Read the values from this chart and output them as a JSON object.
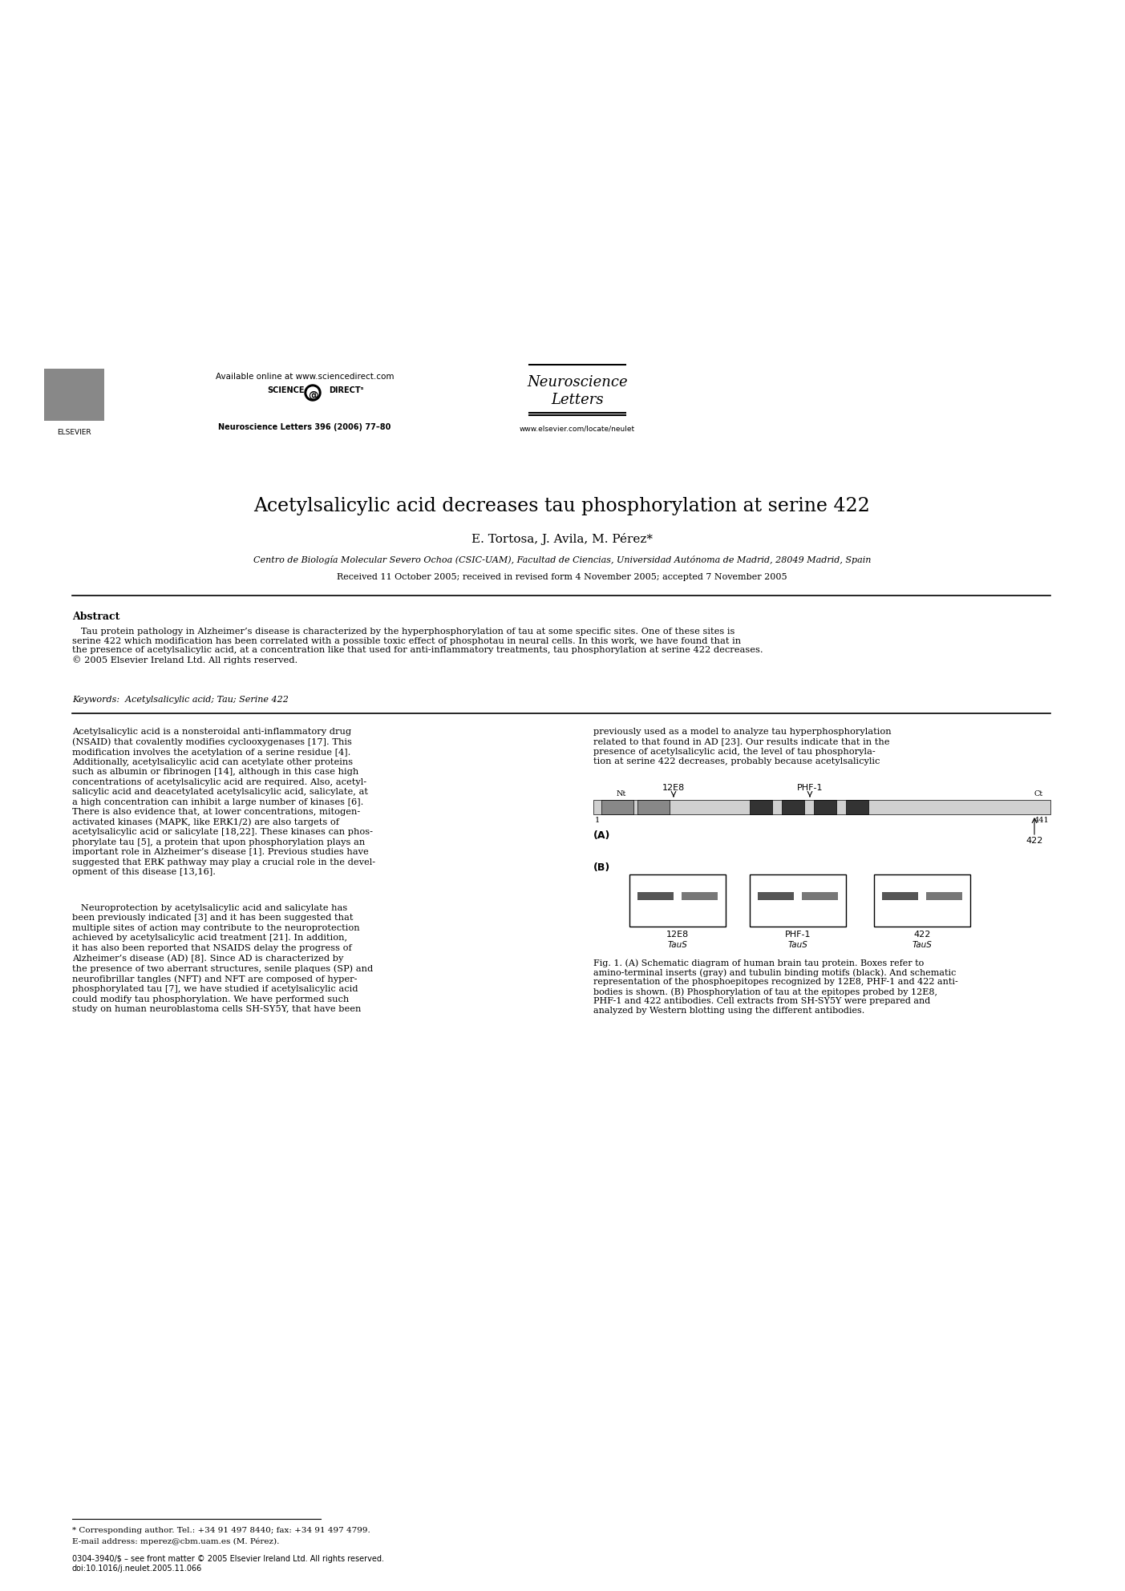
{
  "bg_color": "#ffffff",
  "title": "Acetylsalicylic acid decreases tau phosphorylation at serine 422",
  "authors": "E. Tortosa, J. Avila, M. Pérez*",
  "affiliation": "Centro de Biología Molecular Severo Ochoa (CSIC-UAM), Facultad de Ciencias, Universidad Autónoma de Madrid, 28049 Madrid, Spain",
  "received": "Received 11 October 2005; received in revised form 4 November 2005; accepted 7 November 2005",
  "journal_name": "Neuroscience\nLetters",
  "available_online": "Available online at www.sciencedirect.com",
  "journal_vol": "Neuroscience Letters 396 (2006) 77–80",
  "elsevier_url": "www.elsevier.com/locate/neulet",
  "abstract_title": "Abstract",
  "abstract_text": "   Tau protein pathology in Alzheimer’s disease is characterized by the hyperphosphorylation of tau at some specific sites. One of these sites is\nserine 422 which modification has been correlated with a possible toxic effect of phosphotau in neural cells. In this work, we have found that in\nthe presence of acetylsalicylic acid, at a concentration like that used for anti-inflammatory treatments, tau phosphorylation at serine 422 decreases.\n© 2005 Elsevier Ireland Ltd. All rights reserved.",
  "keywords": "Keywords:  Acetylsalicylic acid; Tau; Serine 422",
  "col1_text": "Acetylsalicylic acid is a nonsteroidal anti-inflammatory drug\n(NSAID) that covalently modifies cyclooxygenases [17]. This\nmodification involves the acetylation of a serine residue [4].\nAdditionally, acetylsalicylic acid can acetylate other proteins\nsuch as albumin or fibrinogen [14], although in this case high\nconcentrations of acetylsalicylic acid are required. Also, acetyl-\nsalicylic acid and deacetylated acetylsalicylic acid, salicylate, at\na high concentration can inhibit a large number of kinases [6].\nThere is also evidence that, at lower concentrations, mitogen-\nactivated kinases (MAPK, like ERK1/2) are also targets of\nacetylsalicylic acid or salicylate [18,22]. These kinases can phos-\nphorylate tau [5], a protein that upon phosphorylation plays an\nimportant role in Alzheimer’s disease [1]. Previous studies have\nsuggested that ERK pathway may play a crucial role in the devel-\nopment of this disease [13,16].",
  "col1_text2": "   Neuroprotection by acetylsalicylic acid and salicylate has\nbeen previously indicated [3] and it has been suggested that\nmultiple sites of action may contribute to the neuroprotection\nachieved by acetylsalicylic acid treatment [21]. In addition,\nit has also been reported that NSAIDS delay the progress of\nAlzheimer’s disease (AD) [8]. Since AD is characterized by\nthe presence of two aberrant structures, senile plaques (SP) and\nneurofibrillar tangles (NFT) and NFT are composed of hyper-\nphosphorylated tau [7], we have studied if acetylsalicylic acid\ncould modify tau phosphorylation. We have performed such\nstudy on human neuroblastoma cells SH-SY5Y, that have been",
  "col2_text": "previously used as a model to analyze tau hyperphosphorylation\nrelated to that found in AD [23]. Our results indicate that in the\npresence of acetylsalicylic acid, the level of tau phosphoryla-\ntion at serine 422 decreases, probably because acetylsalicylic",
  "fig_caption": "Fig. 1. (A) Schematic diagram of human brain tau protein. Boxes refer to\namino-terminal inserts (gray) and tubulin binding motifs (black). And schematic\nrepresentation of the phosphoepitopes recognized by 12E8, PHF-1 and 422 anti-\nbodies is shown. (B) Phosphorylation of tau at the epitopes probed by 12E8,\nPHF-1 and 422 antibodies. Cell extracts from SH-SY5Y were prepared and\nanalyzed by Western blotting using the different antibodies.",
  "footnote1": "* Corresponding author. Tel.: +34 91 497 8440; fax: +34 91 497 4799.",
  "footnote2": "E-mail address: mperez@cbm.uam.es (M. Pérez).",
  "footer_left": "0304-3940/$ – see front matter © 2005 Elsevier Ireland Ltd. All rights reserved.\ndoi:10.1016/j.neulet.2005.11.066",
  "fig_labels_top": [
    "12E8",
    "PHF-1"
  ],
  "fig_labels_bot": [
    "12E8",
    "PHF-1",
    "422"
  ],
  "fig_panel_A_label": "(A)",
  "fig_panel_B_label": "(B)",
  "tau_labels": [
    "1",
    "Nt",
    "441",
    "Ct",
    "422"
  ],
  "tau_sublabels": [
    "TauS",
    "TauS",
    "TauS"
  ]
}
